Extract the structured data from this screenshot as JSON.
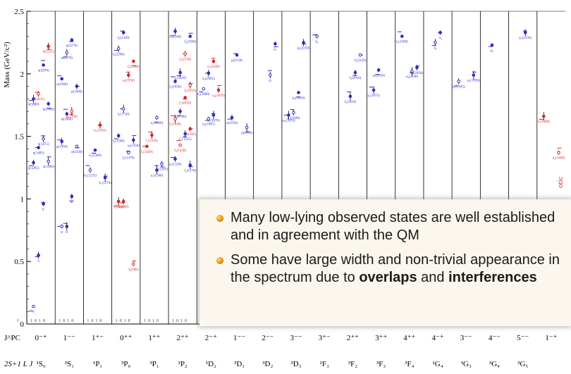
{
  "chart_data": {
    "type": "scatter",
    "title": "",
    "ylabel": "Mass (GeV/c²)",
    "ylim": [
      0,
      2.5
    ],
    "yticks": [
      "0",
      "0.5",
      "1",
      "1.5",
      "2",
      "2.5"
    ],
    "jpc_row_label": "J^PC",
    "spec_row_label": "2S+1 L J",
    "isospin_row_label": "I",
    "isospin_values": [
      "1",
      "0",
      "1",
      "0"
    ],
    "columns": [
      {
        "jpc": "0⁻⁺",
        "spec": "¹S₀"
      },
      {
        "jpc": "1⁻⁻",
        "spec": "³S₁"
      },
      {
        "jpc": "1⁺⁻",
        "spec": "¹P₁"
      },
      {
        "jpc": "0⁺⁺",
        "spec": "³P₀"
      },
      {
        "jpc": "1⁺⁺",
        "spec": "³P₁"
      },
      {
        "jpc": "2⁺⁺",
        "spec": "³P₂"
      },
      {
        "jpc": "2⁻⁺",
        "spec": "¹D₂"
      },
      {
        "jpc": "1⁻⁻",
        "spec": "³D₁"
      },
      {
        "jpc": "2⁻⁻",
        "spec": "³D₂"
      },
      {
        "jpc": "3⁻⁻",
        "spec": "³D₃"
      },
      {
        "jpc": "3⁺⁻",
        "spec": "¹F₃"
      },
      {
        "jpc": "2⁺⁺",
        "spec": "³F₂"
      },
      {
        "jpc": "3⁺⁺",
        "spec": "³F₃"
      },
      {
        "jpc": "4⁺⁺",
        "spec": "³F₄"
      },
      {
        "jpc": "4⁻⁺",
        "spec": "¹G₄"
      },
      {
        "jpc": "3⁻⁻",
        "spec": "³G₃"
      },
      {
        "jpc": "4⁻⁻",
        "spec": "³G₄"
      },
      {
        "jpc": "5⁻⁻",
        "spec": "³G₅"
      },
      {
        "jpc": "1⁻⁺",
        "spec": ""
      }
    ],
    "states": [
      {
        "col": 0,
        "mass": 0.14,
        "name": "π",
        "color": "blue"
      },
      {
        "col": 0,
        "mass": 0.55,
        "name": "η",
        "color": "blue"
      },
      {
        "col": 0,
        "mass": 0.96,
        "name": "η'",
        "color": "blue"
      },
      {
        "col": 0,
        "mass": 1.3,
        "name": "π(1300)",
        "color": "blue"
      },
      {
        "col": 0,
        "mass": 1.29,
        "name": "η(1295)",
        "color": "blue"
      },
      {
        "col": 0,
        "mass": 1.41,
        "name": "η(1405)",
        "color": "blue"
      },
      {
        "col": 0,
        "mass": 1.48,
        "name": "η(1475)",
        "color": "blue"
      },
      {
        "col": 0,
        "mass": 1.76,
        "name": "η(1760)",
        "color": "blue"
      },
      {
        "col": 0,
        "mass": 1.8,
        "name": "π(1800)",
        "color": "blue"
      },
      {
        "col": 0,
        "mass": 1.84,
        "name": "X(1835)",
        "color": "red"
      },
      {
        "col": 0,
        "mass": 2.07,
        "name": "π(2070)",
        "color": "blue"
      },
      {
        "col": 0,
        "mass": 2.22,
        "name": "η(2225)",
        "color": "red"
      },
      {
        "col": 1,
        "mass": 0.78,
        "name": "ρ",
        "color": "blue"
      },
      {
        "col": 1,
        "mass": 0.78,
        "name": "ω",
        "color": "blue"
      },
      {
        "col": 1,
        "mass": 1.02,
        "name": "φ",
        "color": "blue"
      },
      {
        "col": 1,
        "mass": 1.42,
        "name": "ω(1420)",
        "color": "blue"
      },
      {
        "col": 1,
        "mass": 1.46,
        "name": "ρ(1450)",
        "color": "blue"
      },
      {
        "col": 1,
        "mass": 1.68,
        "name": "φ(1680)",
        "color": "blue"
      },
      {
        "col": 1,
        "mass": 1.7,
        "name": "ρ(1700)",
        "color": "red"
      },
      {
        "col": 1,
        "mass": 1.9,
        "name": "ρ(1900)",
        "color": "blue"
      },
      {
        "col": 1,
        "mass": 1.96,
        "name": "ω(1960)",
        "color": "blue"
      },
      {
        "col": 1,
        "mass": 2.17,
        "name": "φ(2170)",
        "color": "blue"
      },
      {
        "col": 1,
        "mass": 2.27,
        "name": "ρ(2270)",
        "color": "blue"
      },
      {
        "col": 2,
        "mass": 1.17,
        "name": "h₁(1170)",
        "color": "blue"
      },
      {
        "col": 2,
        "mass": 1.23,
        "name": "b₁(1235)",
        "color": "blue"
      },
      {
        "col": 2,
        "mass": 1.39,
        "name": "h₁(1380)",
        "color": "blue"
      },
      {
        "col": 2,
        "mass": 1.59,
        "name": "h₁(1595)",
        "color": "red"
      },
      {
        "col": 3,
        "mass": 0.48,
        "name": "f₀(500)",
        "color": "red"
      },
      {
        "col": 3,
        "mass": 0.98,
        "name": "f₀(980)",
        "color": "red"
      },
      {
        "col": 3,
        "mass": 0.98,
        "name": "a₀(980)",
        "color": "red"
      },
      {
        "col": 3,
        "mass": 1.37,
        "name": "f₀(1370)",
        "color": "blue"
      },
      {
        "col": 3,
        "mass": 1.47,
        "name": "a₀(1450)",
        "color": "blue"
      },
      {
        "col": 3,
        "mass": 1.505,
        "name": "f₀(1500)",
        "color": "blue"
      },
      {
        "col": 3,
        "mass": 1.72,
        "name": "f₀(1710)",
        "color": "blue"
      },
      {
        "col": 3,
        "mass": 1.99,
        "name": "a₀(1950)",
        "color": "red"
      },
      {
        "col": 3,
        "mass": 2.1,
        "name": "f₀(2100)",
        "color": "red"
      },
      {
        "col": 3,
        "mass": 2.2,
        "name": "f₀(2200)",
        "color": "blue"
      },
      {
        "col": 3,
        "mass": 2.33,
        "name": "f₀(2330)",
        "color": "blue"
      },
      {
        "col": 4,
        "mass": 1.23,
        "name": "a₁(1260)",
        "color": "blue"
      },
      {
        "col": 4,
        "mass": 1.28,
        "name": "f₁(1285)",
        "color": "blue"
      },
      {
        "col": 4,
        "mass": 1.42,
        "name": "f₁(1420)",
        "color": "red"
      },
      {
        "col": 4,
        "mass": 1.51,
        "name": "f₁(1510)",
        "color": "red"
      },
      {
        "col": 4,
        "mass": 1.65,
        "name": "a₁(1640)",
        "color": "blue"
      },
      {
        "col": 5,
        "mass": 1.27,
        "name": "f₂(1270)",
        "color": "blue"
      },
      {
        "col": 5,
        "mass": 1.32,
        "name": "a₂(1320)",
        "color": "blue"
      },
      {
        "col": 5,
        "mass": 1.43,
        "name": "f₂(1430)",
        "color": "red"
      },
      {
        "col": 5,
        "mass": 1.52,
        "name": "f₂'(1525)",
        "color": "blue"
      },
      {
        "col": 5,
        "mass": 1.56,
        "name": "f₂(1565)",
        "color": "red"
      },
      {
        "col": 5,
        "mass": 1.64,
        "name": "f₂(1640)",
        "color": "red"
      },
      {
        "col": 5,
        "mass": 1.7,
        "name": "a₂(1700)",
        "color": "blue"
      },
      {
        "col": 5,
        "mass": 1.81,
        "name": "f₂(1810)",
        "color": "red"
      },
      {
        "col": 5,
        "mass": 1.91,
        "name": "f₂(1910)",
        "color": "red"
      },
      {
        "col": 5,
        "mass": 1.94,
        "name": "f₂(1950)",
        "color": "blue"
      },
      {
        "col": 5,
        "mass": 2.01,
        "name": "f₂(2010)",
        "color": "blue"
      },
      {
        "col": 5,
        "mass": 2.16,
        "name": "f₂(2150)",
        "color": "red"
      },
      {
        "col": 5,
        "mass": 2.3,
        "name": "f₂(2300)",
        "color": "blue"
      },
      {
        "col": 5,
        "mass": 2.34,
        "name": "f₂(2340)",
        "color": "blue"
      },
      {
        "col": 6,
        "mass": 1.64,
        "name": "η₂(1645)",
        "color": "blue"
      },
      {
        "col": 6,
        "mass": 1.67,
        "name": "π₂(1670)",
        "color": "blue"
      },
      {
        "col": 6,
        "mass": 1.87,
        "name": "η₂(1870)",
        "color": "red"
      },
      {
        "col": 6,
        "mass": 1.88,
        "name": "π₂(1880)",
        "color": "blue"
      },
      {
        "col": 6,
        "mass": 2.005,
        "name": "π₂(2005)",
        "color": "blue"
      },
      {
        "col": 6,
        "mass": 2.1,
        "name": "π₂(2100)",
        "color": "red"
      },
      {
        "col": 7,
        "mass": 1.57,
        "name": "ρ(1570)",
        "color": "blue"
      },
      {
        "col": 7,
        "mass": 1.65,
        "name": "ω(1650)",
        "color": "blue"
      },
      {
        "col": 7,
        "mass": 2.15,
        "name": "ρ(2150)",
        "color": "blue"
      },
      {
        "col": 8,
        "mass": 1.99,
        "name": "ρ₂",
        "color": "blue"
      },
      {
        "col": 8,
        "mass": 2.24,
        "name": "ρ₂",
        "color": "blue"
      },
      {
        "col": 9,
        "mass": 1.67,
        "name": "ω₃(1670)",
        "color": "blue"
      },
      {
        "col": 9,
        "mass": 1.69,
        "name": "ρ₃(1690)",
        "color": "blue"
      },
      {
        "col": 9,
        "mass": 1.85,
        "name": "φ₃(1850)",
        "color": "blue"
      },
      {
        "col": 9,
        "mass": 2.25,
        "name": "ρ₃(2250)",
        "color": "blue"
      },
      {
        "col": 10,
        "mass": 2.3,
        "name": "h₃",
        "color": "blue"
      },
      {
        "col": 11,
        "mass": 1.82,
        "name": "f₂(1810)",
        "color": "blue"
      },
      {
        "col": 11,
        "mass": 2.01,
        "name": "f₂(2010)",
        "color": "blue"
      },
      {
        "col": 11,
        "mass": 2.15,
        "name": "f₂(2150)",
        "color": "blue"
      },
      {
        "col": 12,
        "mass": 1.87,
        "name": "a₃(1875)",
        "color": "blue"
      },
      {
        "col": 12,
        "mass": 2.03,
        "name": "a₃(2030)",
        "color": "blue"
      },
      {
        "col": 13,
        "mass": 2.02,
        "name": "a₄(2040)",
        "color": "blue"
      },
      {
        "col": 13,
        "mass": 2.05,
        "name": "f₄(2050)",
        "color": "blue"
      },
      {
        "col": 13,
        "mass": 2.3,
        "name": "f₄(2300)",
        "color": "blue"
      },
      {
        "col": 14,
        "mass": 2.25,
        "name": "η₄",
        "color": "blue"
      },
      {
        "col": 14,
        "mass": 2.33,
        "name": "π₄",
        "color": "blue"
      },
      {
        "col": 15,
        "mass": 1.99,
        "name": "ρ₃(1990)",
        "color": "blue"
      },
      {
        "col": 15,
        "mass": 1.94,
        "name": "ω₃(1945)",
        "color": "blue"
      },
      {
        "col": 16,
        "mass": 2.23,
        "name": "ρ₄",
        "color": "blue"
      },
      {
        "col": 17,
        "mass": 2.33,
        "name": "ρ₅(2350)",
        "color": "blue"
      },
      {
        "col": 18,
        "mass": 1.37,
        "name": "π₁(1400)",
        "color": "red"
      },
      {
        "col": 18,
        "mass": 1.66,
        "name": "π₁(1600)",
        "color": "red"
      }
    ],
    "rotated_label": "otic"
  },
  "note": {
    "bullet1": "Many low-lying observed states are well established and in agreement with the QM",
    "bullet2_a": "Some have large width and non-trivial appearance in the spectrum due to ",
    "bullet2_b1": "overlaps",
    "bullet2_and": " and ",
    "bullet2_b2": "interferences"
  },
  "colors": {
    "exp_blue": "#2a2ad0",
    "exp_red": "#e02020",
    "qm_blue": "#2a2ad0",
    "qm_red": "#e02020"
  }
}
